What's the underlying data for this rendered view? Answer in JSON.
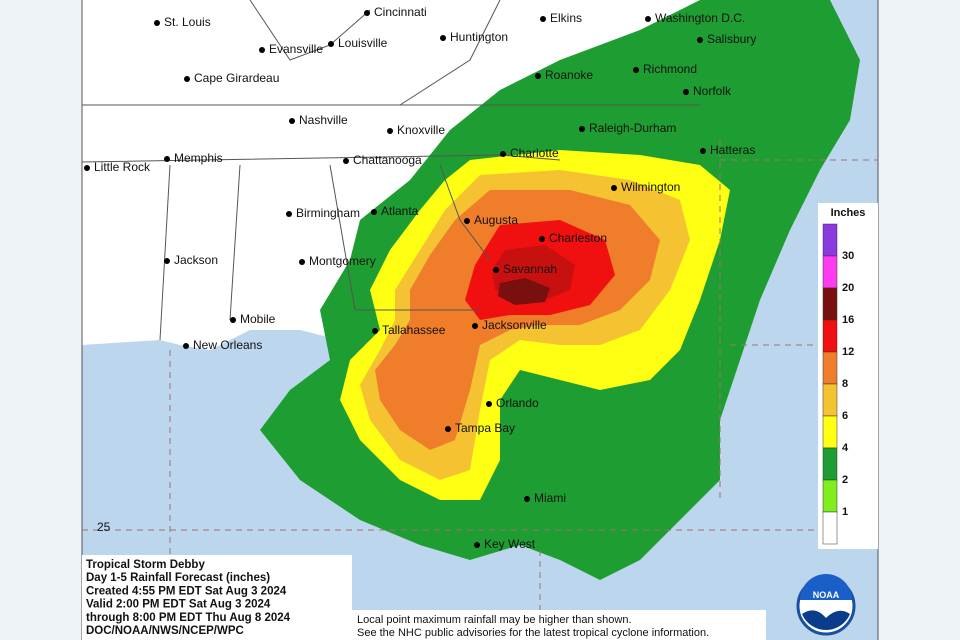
{
  "map": {
    "cities": [
      "St. Louis",
      "Cincinnati",
      "Elkins",
      "Washington D.C.",
      "Evansville",
      "Louisville",
      "Huntington",
      "Salisbury",
      "Cape Girardeau",
      "Roanoke",
      "Richmond",
      "Norfolk",
      "Nashville",
      "Knoxville",
      "Raleigh-Durham",
      "Little Rock",
      "Memphis",
      "Chattanooga",
      "Charlotte",
      "Hatteras",
      "Wilmington",
      "Birmingham",
      "Atlanta",
      "Augusta",
      "Charleston",
      "Jackson",
      "Montgomery",
      "Savannah",
      "Mobile",
      "Tallahassee",
      "Jacksonville",
      "New Orleans",
      "Orlando",
      "Tampa Bay",
      "Miami",
      "Key West"
    ],
    "latitude_label": "25",
    "legend": {
      "title": "Inches",
      "labels": [
        "30",
        "20",
        "16",
        "12",
        "8",
        "6",
        "4",
        "2",
        "1"
      ],
      "colors": [
        "#8a3be0",
        "#ff3bf0",
        "#7a0f0f",
        "#f01010",
        "#f07d2a",
        "#f5c232",
        "#ffff14",
        "#1e9e32",
        "#80ee1e",
        "#ffffff"
      ]
    },
    "info": [
      "Tropical Storm Debby",
      "Day 1-5 Rainfall Forecast (inches)",
      "Created 4:55 PM EDT Sat Aug 3 2024",
      "Valid 2:00 PM EDT Sat Aug 3 2024",
      "through 8:00 PM EDT Thu Aug 8 2024",
      "DOC/NOAA/NWS/NCEP/WPC"
    ],
    "note": [
      "Local point maximum rainfall may be higher than shown.",
      "See the NHC public advisories for the latest tropical cyclone information."
    ],
    "logo": "NOAA"
  }
}
